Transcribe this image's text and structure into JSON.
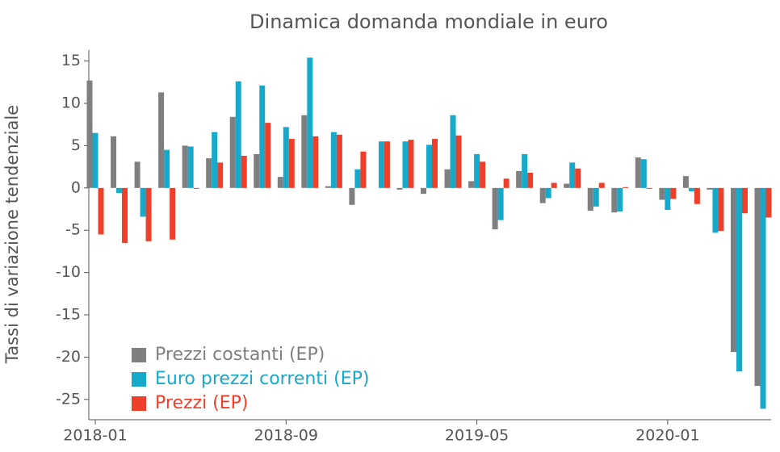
{
  "chart_data": {
    "type": "bar",
    "title": "Dinamica domanda mondiale in euro",
    "y_label": "Tassi di variazione tendenziale",
    "categories": [
      "2018-01",
      null,
      null,
      null,
      null,
      null,
      null,
      null,
      "2018-09",
      null,
      null,
      null,
      null,
      null,
      null,
      null,
      "2019-05",
      null,
      null,
      null,
      null,
      null,
      null,
      null,
      "2020-01",
      null,
      null,
      null,
      null
    ],
    "series": [
      {
        "name": "Prezzi costanti (EP)",
        "color": "#7f7f7f",
        "values": [
          12.7,
          6.1,
          3.1,
          11.3,
          5.0,
          3.5,
          8.4,
          4.0,
          1.3,
          8.6,
          0.2,
          -2.0,
          0.0,
          -0.2,
          -0.7,
          2.2,
          0.8,
          -4.9,
          2.0,
          -1.8,
          0.5,
          -2.7,
          -2.9,
          3.6,
          -1.4,
          1.4,
          -0.2,
          -19.4,
          -23.4
        ]
      },
      {
        "name": "Euro prezzi correnti (EP)",
        "color": "#16a9c9",
        "values": [
          6.5,
          -0.6,
          -3.4,
          4.5,
          4.9,
          6.6,
          12.6,
          12.1,
          7.2,
          15.4,
          6.6,
          2.2,
          5.5,
          5.5,
          5.1,
          8.6,
          4.0,
          -3.8,
          4.0,
          -1.2,
          3.0,
          -2.2,
          -2.8,
          3.4,
          -2.6,
          -0.4,
          -5.3,
          -21.7,
          -26.1
        ]
      },
      {
        "name": "Prezzi (EP)",
        "color": "#ee3f2a",
        "values": [
          -5.5,
          -6.5,
          -6.3,
          -6.1,
          -0.1,
          3.0,
          3.8,
          7.7,
          5.8,
          6.1,
          6.3,
          4.3,
          5.5,
          5.7,
          5.8,
          6.2,
          3.1,
          1.1,
          1.8,
          0.6,
          2.3,
          0.6,
          0.1,
          -0.1,
          -1.3,
          -1.9,
          -5.1,
          -3.0,
          -3.5
        ]
      }
    ],
    "ylim": [
      -27.4,
      16.3
    ],
    "yticks": [
      -25,
      -20,
      -15,
      -10,
      -5,
      0,
      5,
      10,
      15
    ],
    "legend": "lower-left"
  }
}
